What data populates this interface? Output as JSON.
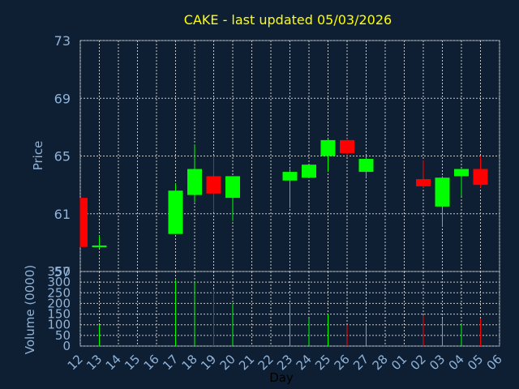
{
  "title": "CAKE - last updated 05/03/2026",
  "chart_data": [
    {
      "type": "candlestick",
      "ylabel": "Price",
      "ylim": [
        57,
        73
      ],
      "yticks": [
        57,
        61,
        65,
        69,
        73
      ],
      "grid": true,
      "up_color": "#00ff00",
      "down_color": "#ff0000",
      "candles": [
        {
          "x": "12",
          "open": 62.1,
          "high": 62.1,
          "low": 58.7,
          "close": 58.7
        },
        {
          "x": "13",
          "open": 58.7,
          "high": 59.5,
          "low": 58.6,
          "close": 58.8
        },
        {
          "x": "17",
          "open": 59.6,
          "high": 63.1,
          "low": 59.6,
          "close": 62.6
        },
        {
          "x": "18",
          "open": 62.3,
          "high": 65.8,
          "low": 61.8,
          "close": 64.1
        },
        {
          "x": "19",
          "open": 63.6,
          "high": 65.0,
          "low": 61.1,
          "close": 62.4
        },
        {
          "x": "20",
          "open": 62.1,
          "high": 63.6,
          "low": 60.5,
          "close": 63.6
        },
        {
          "x": "23",
          "open": 63.3,
          "high": 64.1,
          "low": 61.4,
          "close": 63.9
        },
        {
          "x": "24",
          "open": 63.5,
          "high": 64.4,
          "low": 63.5,
          "close": 64.4
        },
        {
          "x": "25",
          "open": 65.0,
          "high": 66.2,
          "low": 63.9,
          "close": 66.1
        },
        {
          "x": "26",
          "open": 66.1,
          "high": 66.2,
          "low": 65.0,
          "close": 65.2
        },
        {
          "x": "27",
          "open": 63.9,
          "high": 65.0,
          "low": 63.5,
          "close": 64.8
        },
        {
          "x": "02",
          "open": 63.4,
          "high": 64.7,
          "low": 62.8,
          "close": 62.9
        },
        {
          "x": "03",
          "open": 61.5,
          "high": 63.6,
          "low": 60.1,
          "close": 63.5
        },
        {
          "x": "04",
          "open": 63.6,
          "high": 64.1,
          "low": 62.2,
          "close": 64.1
        },
        {
          "x": "05",
          "open": 64.1,
          "high": 65.0,
          "low": 62.8,
          "close": 63.0
        }
      ]
    },
    {
      "type": "bar",
      "ylabel": "Volume (0000)",
      "ylim": [
        0,
        350
      ],
      "yticks": [
        0,
        50,
        100,
        150,
        200,
        250,
        300,
        350
      ],
      "xlabel": "Day",
      "categories": [
        "12",
        "13",
        "14",
        "15",
        "16",
        "17",
        "18",
        "19",
        "20",
        "21",
        "22",
        "23",
        "24",
        "25",
        "26",
        "27",
        "28",
        "01",
        "02",
        "03",
        "04",
        "05",
        "06"
      ],
      "volumes": [
        {
          "x": "12",
          "value": 0,
          "color": "#ff0000"
        },
        {
          "x": "13",
          "value": 100,
          "color": "#00ff00"
        },
        {
          "x": "17",
          "value": 310,
          "color": "#00ff00"
        },
        {
          "x": "18",
          "value": 305,
          "color": "#00ff00"
        },
        {
          "x": "19",
          "value": 265,
          "color": "#ff0000"
        },
        {
          "x": "20",
          "value": 200,
          "color": "#00ff00"
        },
        {
          "x": "23",
          "value": 200,
          "color": "#00ff00"
        },
        {
          "x": "24",
          "value": 130,
          "color": "#00ff00"
        },
        {
          "x": "25",
          "value": 150,
          "color": "#00ff00"
        },
        {
          "x": "26",
          "value": 100,
          "color": "#ff0000"
        },
        {
          "x": "27",
          "value": 100,
          "color": "#00ff00"
        },
        {
          "x": "02",
          "value": 145,
          "color": "#ff0000"
        },
        {
          "x": "03",
          "value": 130,
          "color": "#00ff00"
        },
        {
          "x": "04",
          "value": 105,
          "color": "#00ff00"
        },
        {
          "x": "05",
          "value": 130,
          "color": "#ff0000"
        }
      ]
    }
  ]
}
